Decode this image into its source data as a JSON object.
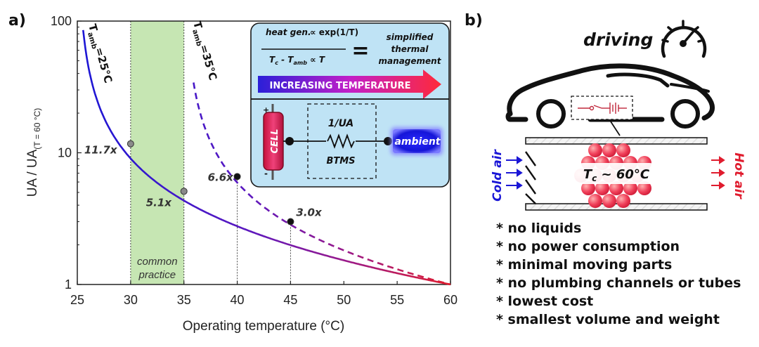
{
  "chart_data": {
    "type": "line",
    "panel_label": "a)",
    "xlabel": "Operating temperature (°C)",
    "ylabel": "UA / UA",
    "ylabel_sub": "(T = 60 °C)",
    "xlim": [
      25,
      60
    ],
    "ylim": [
      1,
      100
    ],
    "yscale": "log",
    "x_ticks": [
      "25",
      "30",
      "35",
      "40",
      "45",
      "50",
      "55",
      "60"
    ],
    "y_ticks": [
      {
        "value": 1,
        "label": "1"
      },
      {
        "value": 10,
        "label": "10"
      },
      {
        "value": 100,
        "label": "100"
      }
    ],
    "shaded_region": {
      "x": [
        30,
        35
      ],
      "label_lines": [
        "common",
        "practice"
      ],
      "color": "#c6e6b3"
    },
    "series": [
      {
        "name": "T_amb = 25°C",
        "label_main": "T",
        "label_sub": "amb",
        "label_val": "=25°C",
        "t_amb": 25,
        "style": "solid",
        "x": [
          25.5,
          30,
          35,
          40,
          45,
          50,
          55,
          60
        ]
      },
      {
        "name": "T_amb = 35°C",
        "label_main": "T",
        "label_sub": "amb",
        "label_val": "=35°C",
        "t_amb": 35,
        "style": "dashed",
        "x": [
          36.0,
          40,
          45,
          50,
          55,
          60
        ]
      }
    ],
    "annotations": [
      {
        "x": 30,
        "y": 11.7,
        "label": "11.7x"
      },
      {
        "x": 35,
        "y": 5.1,
        "label": "5.1x"
      },
      {
        "x": 40,
        "y": 6.6,
        "label": "6.6x"
      },
      {
        "x": 45,
        "y": 3.0,
        "label": "3.0x"
      }
    ],
    "gradient_colors": {
      "start": "#1a16d6",
      "mid": "#7a1aa8",
      "end": "#e01c2e"
    }
  },
  "inset": {
    "heat_gen": "heat gen.",
    "proportional_1": "∝ exp(1/T)",
    "denominator": "T_c - T_amb ∝ T",
    "den_t": "T",
    "den_c": "c",
    "den_minus": " - ",
    "den_amb": "amb",
    "den_prop": " ∝ T",
    "equals": "=",
    "result_lines": [
      "simplified",
      "thermal",
      "management"
    ],
    "arrow_text": "INCREASING TEMPERATURE",
    "cell_label": "CELL",
    "plus": "+",
    "minus": "-",
    "resistor_label": "1/UA",
    "btms_label": "BTMS",
    "ambient_label": "ambient"
  },
  "panel_b": {
    "panel_label": "b)",
    "driving": "driving",
    "cold_air": "Cold air",
    "hot_air": "Hot air",
    "tc_main": "T",
    "tc_sub": "c",
    "tc_rest": " ~ 60°C",
    "bullets": [
      "* no liquids",
      "* no power consumption",
      "* minimal moving parts",
      "* no plumbing channels or tubes",
      "* lowest cost",
      "* smallest volume and weight"
    ]
  },
  "colors": {
    "blue": "#1a16d6",
    "red": "#e01c2e",
    "inset_bg": "#bfe3f5",
    "green": "#c6e6b3"
  }
}
